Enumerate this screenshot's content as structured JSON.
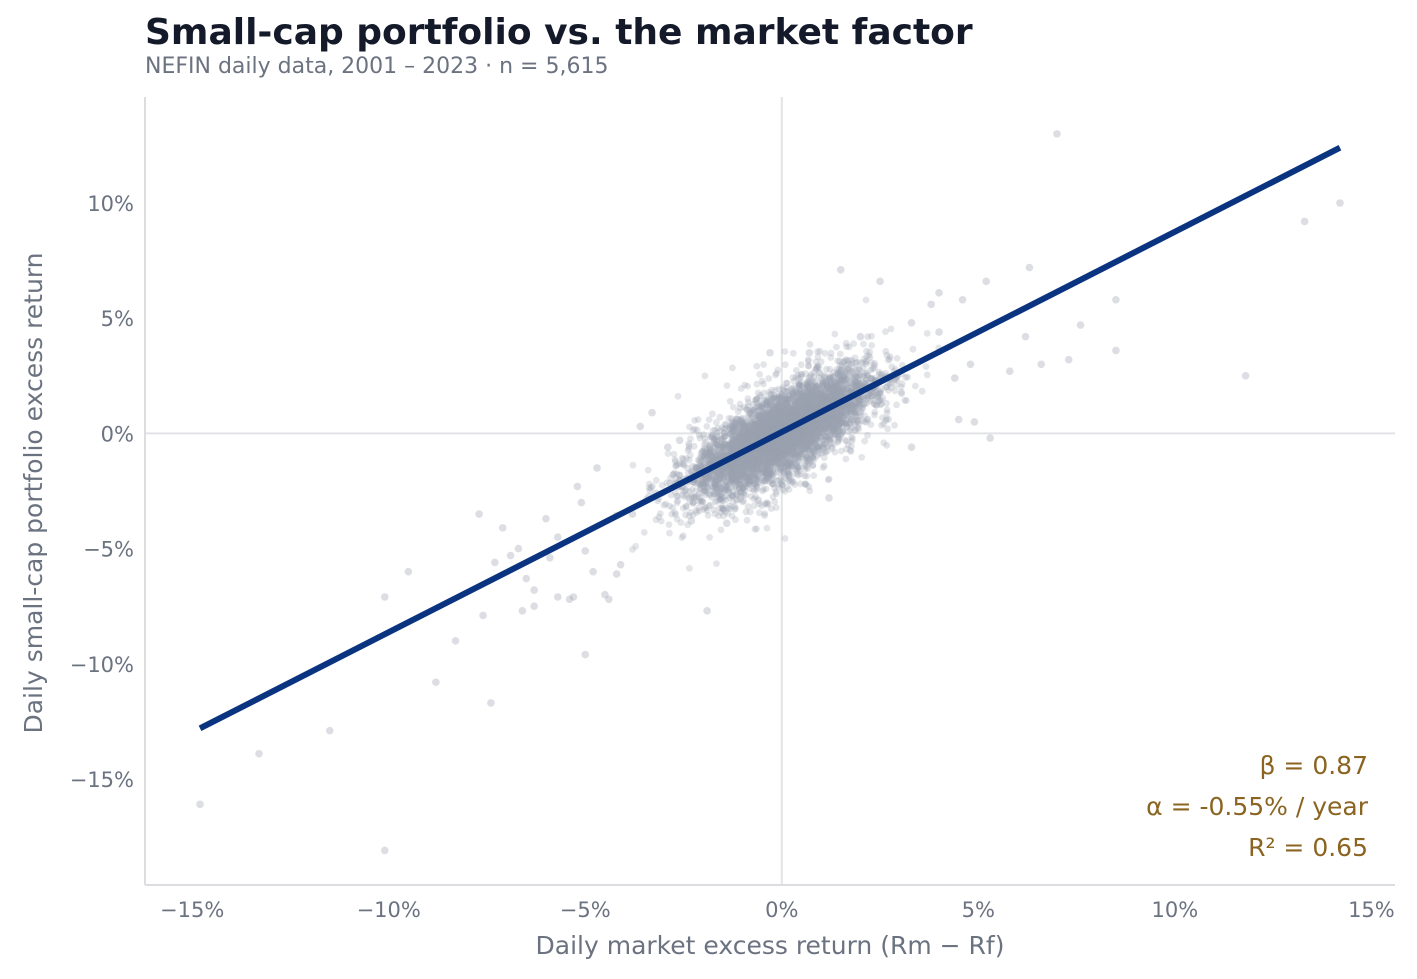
{
  "chart_data": {
    "type": "scatter",
    "title": "Small-cap portfolio vs. the market factor",
    "subtitle": "NEFIN daily data, 2001 – 2023  ·  n = 5,615",
    "xlabel": "Daily market excess return (Rm − Rf)",
    "ylabel": "Daily small-cap portfolio excess return",
    "xlim": [
      -16.2,
      15.6
    ],
    "ylim": [
      -19.6,
      14.6
    ],
    "xticks": [
      -15,
      -10,
      -5,
      0,
      5,
      10,
      15
    ],
    "xtick_labels": [
      "−15%",
      "−10%",
      "−5%",
      "0%",
      "5%",
      "10%",
      "15%"
    ],
    "yticks": [
      -15,
      -10,
      -5,
      0,
      5,
      10
    ],
    "ytick_labels": [
      "−15%",
      "−10%",
      "−5%",
      "0%",
      "5%",
      "10%"
    ],
    "grid": false,
    "zero_lines": true,
    "n_points": 5615,
    "points_color": "#9ca0b0",
    "line_color": "#0b3480",
    "annotation_color": "#8a6420",
    "regression_line": {
      "x": [
        -14.8,
        14.2
      ],
      "y": [
        -12.8,
        12.4
      ],
      "beta": 0.87
    },
    "annotations": [
      "β = 0.87",
      "α = -0.55% / year",
      "R² = 0.65"
    ],
    "points": [
      [
        -14.8,
        -16.1
      ],
      [
        -13.3,
        -13.9
      ],
      [
        -11.5,
        -12.9
      ],
      [
        -10.1,
        -18.1
      ],
      [
        -10.1,
        -7.1
      ],
      [
        -9.5,
        -6.0
      ],
      [
        -8.8,
        -10.8
      ],
      [
        -8.3,
        -9.0
      ],
      [
        -7.7,
        -3.5
      ],
      [
        -7.6,
        -7.9
      ],
      [
        -7.4,
        -11.7
      ],
      [
        -7.3,
        -5.6
      ],
      [
        -7.1,
        -4.1
      ],
      [
        -6.9,
        -5.3
      ],
      [
        -6.7,
        -5.0
      ],
      [
        -6.6,
        -7.7
      ],
      [
        -6.5,
        -6.3
      ],
      [
        -6.3,
        -7.5
      ],
      [
        -6.3,
        -6.8
      ],
      [
        -6.0,
        -3.7
      ],
      [
        -5.9,
        -5.4
      ],
      [
        -5.7,
        -4.5
      ],
      [
        -5.7,
        -7.1
      ],
      [
        -5.4,
        -7.2
      ],
      [
        -5.3,
        -7.1
      ],
      [
        -5.2,
        -2.3
      ],
      [
        -5.1,
        -3.0
      ],
      [
        -5.0,
        -5.1
      ],
      [
        -5.0,
        -9.6
      ],
      [
        -4.8,
        -6.0
      ],
      [
        -4.7,
        -1.5
      ],
      [
        -4.5,
        -7.0
      ],
      [
        -4.4,
        -7.2
      ],
      [
        -4.2,
        -6.1
      ],
      [
        -4.1,
        -5.7
      ],
      [
        -3.8,
        -3.5
      ],
      [
        -3.6,
        0.3
      ],
      [
        -3.3,
        0.9
      ],
      [
        -3.2,
        -2.6
      ],
      [
        -2.9,
        -0.6
      ],
      [
        -2.6,
        -0.3
      ],
      [
        -2.3,
        -3.8
      ],
      [
        -1.9,
        -7.7
      ],
      [
        -1.4,
        -3.9
      ],
      [
        -0.6,
        -2.9
      ],
      [
        -0.3,
        3.5
      ],
      [
        0.7,
        3.5
      ],
      [
        1.2,
        -2.8
      ],
      [
        1.5,
        7.1
      ],
      [
        2.0,
        4.2
      ],
      [
        2.5,
        6.6
      ],
      [
        2.4,
        2.1
      ],
      [
        3.3,
        4.8
      ],
      [
        3.3,
        -0.6
      ],
      [
        3.8,
        5.6
      ],
      [
        4.0,
        6.1
      ],
      [
        4.0,
        4.4
      ],
      [
        4.4,
        2.4
      ],
      [
        4.5,
        0.6
      ],
      [
        4.6,
        5.8
      ],
      [
        4.8,
        3.0
      ],
      [
        4.9,
        0.5
      ],
      [
        5.2,
        6.6
      ],
      [
        5.3,
        -0.2
      ],
      [
        5.8,
        2.7
      ],
      [
        6.2,
        4.2
      ],
      [
        6.3,
        7.2
      ],
      [
        6.6,
        3.0
      ],
      [
        7.0,
        13.0
      ],
      [
        7.3,
        3.2
      ],
      [
        7.6,
        4.7
      ],
      [
        8.5,
        5.8
      ],
      [
        8.5,
        3.6
      ],
      [
        11.8,
        2.5
      ],
      [
        13.3,
        9.2
      ],
      [
        14.2,
        10.0
      ]
    ],
    "cloud": {
      "x_sd": 1.12,
      "noise_sd": 0.95,
      "count": 5539
    }
  }
}
